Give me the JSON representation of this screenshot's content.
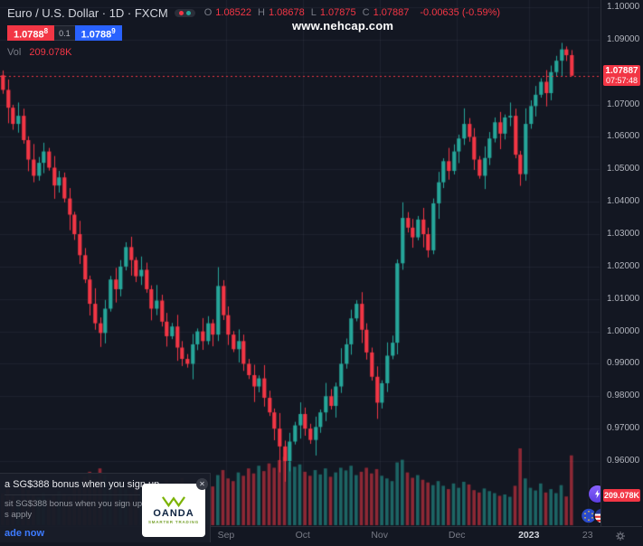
{
  "header": {
    "symbol_title": "Euro / U.S. Dollar · 1D · FXCM",
    "ohlc": [
      {
        "k": "O",
        "v": "1.08522"
      },
      {
        "k": "H",
        "v": "1.08678"
      },
      {
        "k": "L",
        "v": "1.07875"
      },
      {
        "k": "C",
        "v": "1.07887"
      }
    ],
    "change": "-0.00635 (-0.59%)",
    "sell": {
      "main": "1.0788",
      "sup": "8"
    },
    "spread": "0.1",
    "buy": {
      "main": "1.0788",
      "sup": "9"
    },
    "vol_label": "Vol",
    "vol_value": "209.078K"
  },
  "watermark": "www.nehcap.com",
  "colors": {
    "bg": "#131722",
    "up": "#26a69a",
    "down": "#f23645",
    "buy_blue": "#2962ff",
    "axis_text": "#b2b5be",
    "muted_text": "#787b86"
  },
  "price_scale": {
    "labels": [
      "1.10000",
      "1.09000",
      "1.08000",
      "1.07000",
      "1.06000",
      "1.05000",
      "1.04000",
      "1.03000",
      "1.02000",
      "1.01000",
      "1.00000",
      "0.99000",
      "0.98000",
      "0.97000",
      "0.96000"
    ],
    "current": {
      "price": "1.07887",
      "countdown": "07:57:48"
    },
    "volume_badge": "209.078K"
  },
  "time_scale": {
    "labels": [
      {
        "t": "Sep",
        "f": 0.377
      },
      {
        "t": "Oct",
        "f": 0.505
      },
      {
        "t": "Nov",
        "f": 0.633
      },
      {
        "t": "Dec",
        "f": 0.762
      },
      {
        "t": "2023",
        "f": 0.882,
        "major": true
      },
      {
        "t": "23",
        "f": 0.98
      }
    ]
  },
  "chart_data": {
    "type": "candlestick",
    "title": "Euro / U.S. Dollar",
    "symbol": "EURUSD",
    "timeframe": "1D",
    "exchange": "FXCM",
    "ylim": [
      0.94,
      1.1
    ],
    "grid": true,
    "first_open": 1.079,
    "closes": [
      1.0745,
      1.069,
      1.064,
      1.0665,
      1.059,
      1.053,
      1.048,
      1.052,
      1.0555,
      1.0505,
      1.045,
      1.0475,
      1.041,
      1.036,
      1.03,
      1.0235,
      1.016,
      1.0085,
      1.0025,
      0.9995,
      1.007,
      1.016,
      1.013,
      1.02,
      1.026,
      1.022,
      1.017,
      1.019,
      1.013,
      1.007,
      1.0095,
      1.003,
      0.9985,
      1.0015,
      0.995,
      0.9915,
      0.99,
      0.996,
      1.0,
      0.997,
      1.0025,
      0.999,
      1.014,
      1.005,
      0.999,
      0.9945,
      0.997,
      0.99,
      0.9865,
      0.983,
      0.9855,
      0.9795,
      0.975,
      0.97,
      0.9645,
      0.96,
      0.966,
      0.971,
      0.9745,
      0.97,
      0.9665,
      0.9705,
      0.975,
      0.98,
      0.977,
      0.983,
      0.99,
      0.996,
      1.004,
      1.0085,
      1.0005,
      0.9935,
      0.986,
      0.978,
      0.984,
      0.9925,
      0.9965,
      1.021,
      1.035,
      1.032,
      1.029,
      1.0345,
      1.03,
      1.025,
      1.0395,
      1.046,
      1.0525,
      1.0495,
      1.0555,
      1.0595,
      1.064,
      1.06,
      1.053,
      1.048,
      1.0535,
      1.0595,
      1.0645,
      1.061,
      1.066,
      1.0665,
      1.0545,
      1.0485,
      1.064,
      1.0695,
      1.073,
      1.077,
      1.0735,
      1.08,
      1.0835,
      1.087,
      1.0852,
      1.07887
    ],
    "wick_pattern": [
      0.0015,
      0.0032,
      0.0009,
      0.0041,
      0.0022,
      0.0012,
      0.0048,
      0.0018,
      0.0027,
      0.0011,
      0.0036,
      0.002
    ],
    "overrides": {
      "19": {
        "l": 0.9952
      },
      "42": {
        "h": 1.0198
      },
      "54": {
        "l": 0.9565
      },
      "55": {
        "l": 0.9536
      },
      "73": {
        "l": 0.973
      },
      "109": {
        "h": 1.089
      },
      "111": {
        "o": 1.08522,
        "h": 1.08678,
        "l": 1.07875,
        "c": 1.07887
      }
    },
    "volumes_k": [
      95,
      110,
      88,
      76,
      120,
      105,
      92,
      84,
      98,
      79,
      88,
      102,
      95,
      86,
      130,
      112,
      145,
      160,
      138,
      170,
      150,
      125,
      118,
      132,
      108,
      96,
      115,
      104,
      98,
      112,
      92,
      120,
      135,
      110,
      128,
      142,
      125,
      105,
      118,
      98,
      124,
      116,
      150,
      165,
      140,
      132,
      158,
      148,
      170,
      155,
      178,
      162,
      185,
      172,
      195,
      205,
      190,
      175,
      182,
      160,
      148,
      165,
      152,
      170,
      145,
      158,
      172,
      164,
      178,
      150,
      160,
      172,
      155,
      168,
      148,
      140,
      132,
      188,
      196,
      158,
      142,
      150,
      136,
      128,
      120,
      132,
      118,
      108,
      125,
      112,
      130,
      122,
      105,
      98,
      110,
      102,
      96,
      88,
      92,
      85,
      118,
      230,
      140,
      112,
      104,
      125,
      98,
      108,
      96,
      120,
      86,
      209.078
    ],
    "last": {
      "open": 1.08522,
      "high": 1.08678,
      "low": 1.07875,
      "close": 1.07887,
      "change": -0.00635,
      "change_pct": -0.59
    },
    "last_volume_k": 209.078
  },
  "ad": {
    "line1": "a SG$388 bonus when you sign up.",
    "line2": "sit SG$388 bonus when you sign up.",
    "line3": "s apply",
    "cta": "ade now",
    "brand": "OANDA",
    "brand_tagline": "SMARTER TRADING",
    "close_label": "✕"
  },
  "icons": {
    "quick_trade": "lightning-bolt",
    "pair": "eu-us-flag-pair",
    "settings": "gear"
  }
}
